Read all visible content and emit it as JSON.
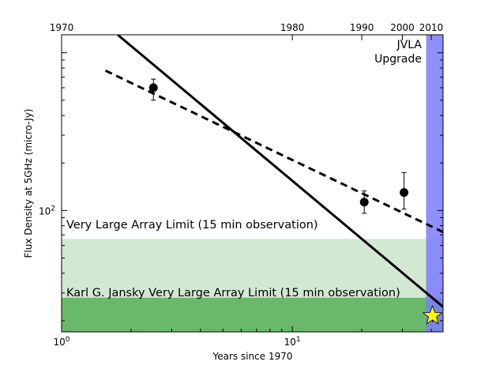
{
  "chart_data": {
    "type": "scatter",
    "xscale": "log",
    "yscale": "log",
    "xlim": [
      1,
      45
    ],
    "ylim": [
      17,
      1300
    ],
    "xlabel": "Years since 1970",
    "ylabel": "Flux Density at 5GHz (micro-Jy)",
    "x_ticks": [
      {
        "value": 1,
        "label": "10^0",
        "base": "10",
        "exp": "0"
      },
      {
        "value": 10,
        "label": "10^1",
        "base": "10",
        "exp": "1"
      }
    ],
    "y_ticks": [
      {
        "value": 100,
        "label": "10^2",
        "base": "10",
        "exp": "2"
      }
    ],
    "top_axis": {
      "ticks": [
        {
          "value": 1,
          "label": "1970"
        },
        {
          "value": 10,
          "label": "1980"
        },
        {
          "value": 20,
          "label": "1990"
        },
        {
          "value": 30,
          "label": "2000"
        },
        {
          "value": 40,
          "label": "2010"
        }
      ]
    },
    "bands": [
      {
        "name": "vla",
        "label": "Very Large Array Limit (15 min observation)",
        "y_range": [
          28,
          66
        ],
        "color": "#d3e8d3"
      },
      {
        "name": "jvla",
        "label": "Karl G. Jansky Very Large Array Limit (15 min observation)",
        "y_range": [
          17,
          28
        ],
        "color": "#6ab86a"
      }
    ],
    "vspan": {
      "label_line1": "JVLA",
      "label_line2": "Upgrade",
      "x_range": [
        38,
        45
      ],
      "color": "#7b7bff"
    },
    "points": [
      {
        "x": 2.5,
        "y": 600,
        "err_low": 100,
        "err_high": 80
      },
      {
        "x": 20.5,
        "y": 113,
        "err_low": 17,
        "err_high": 20
      },
      {
        "x": 30.5,
        "y": 130,
        "err_low": 28,
        "err_high": 44
      }
    ],
    "series": [
      {
        "name": "solid-fit",
        "style": "solid",
        "x": [
          1.75,
          45
        ],
        "y": [
          1300,
          24.5
        ]
      },
      {
        "name": "dashed-fit",
        "style": "dashed",
        "x": [
          1.55,
          45
        ],
        "y": [
          770,
          73
        ]
      }
    ],
    "marker": {
      "shape": "star",
      "x": 40.5,
      "y": 21.5,
      "err_low": 2,
      "err_high": 3,
      "color": "#ffff00"
    }
  }
}
